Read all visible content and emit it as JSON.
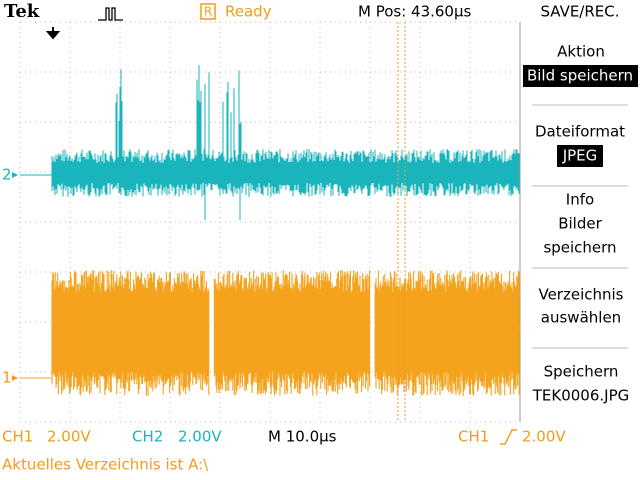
{
  "header": {
    "brand": "Tek",
    "status_icon": "R",
    "status": "Ready",
    "m_pos": "M Pos: 43.60µs",
    "menu_title": "SAVE/REC."
  },
  "menu": [
    {
      "lines": [
        "Aktion"
      ],
      "value": "Bild speichern"
    },
    {
      "lines": [
        "Dateiformat"
      ],
      "value": "JPEG"
    },
    {
      "lines": [
        "Info",
        "Bilder",
        "speichern"
      ]
    },
    {
      "lines": [
        "Verzeichnis",
        "auswählen"
      ]
    },
    {
      "lines": [
        "Speichern",
        "TEK0006.JPG"
      ]
    }
  ],
  "markers": {
    "ch2": "2",
    "ch1": "1"
  },
  "footer": {
    "ch1": {
      "name": "CH1",
      "scale": "2.00V"
    },
    "ch2": {
      "name": "CH2",
      "scale": "2.00V"
    },
    "timebase": "M 10.0µs",
    "trigger": {
      "source": "CH1",
      "level": "2.00V"
    },
    "message": "Aktuelles Verzeichnis ist A:\\"
  }
}
